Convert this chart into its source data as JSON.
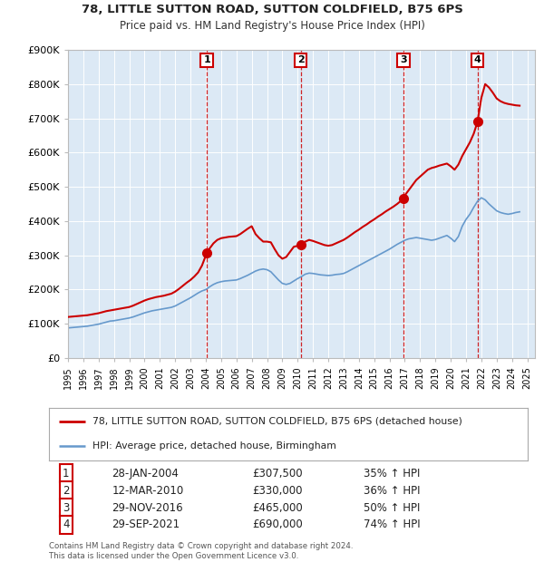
{
  "title1": "78, LITTLE SUTTON ROAD, SUTTON COLDFIELD, B75 6PS",
  "title2": "Price paid vs. HM Land Registry's House Price Index (HPI)",
  "legend_label1": "78, LITTLE SUTTON ROAD, SUTTON COLDFIELD, B75 6PS (detached house)",
  "legend_label2": "HPI: Average price, detached house, Birmingham",
  "footer1": "Contains HM Land Registry data © Crown copyright and database right 2024.",
  "footer2": "This data is licensed under the Open Government Licence v3.0.",
  "bg_color": "#dce9f5",
  "red_line_color": "#cc0000",
  "blue_line_color": "#6699cc",
  "vline_color": "#cc0000",
  "ylim": [
    0,
    900000
  ],
  "yticks": [
    0,
    100000,
    200000,
    300000,
    400000,
    500000,
    600000,
    700000,
    800000,
    900000
  ],
  "ytick_labels": [
    "£0",
    "£100K",
    "£200K",
    "£300K",
    "£400K",
    "£500K",
    "£600K",
    "£700K",
    "£800K",
    "£900K"
  ],
  "sales": [
    {
      "num": 1,
      "date": "28-JAN-2004",
      "price": 307500,
      "price_str": "£307,500",
      "pct": "35% ↑ HPI",
      "x": 2004.07
    },
    {
      "num": 2,
      "date": "12-MAR-2010",
      "price": 330000,
      "price_str": "£330,000",
      "pct": "36% ↑ HPI",
      "x": 2010.2
    },
    {
      "num": 3,
      "date": "29-NOV-2016",
      "price": 465000,
      "price_str": "£465,000",
      "pct": "50% ↑ HPI",
      "x": 2016.91
    },
    {
      "num": 4,
      "date": "29-SEP-2021",
      "price": 690000,
      "price_str": "£690,000",
      "pct": "74% ↑ HPI",
      "x": 2021.75
    }
  ],
  "hpi_x": [
    1995.0,
    1995.25,
    1995.5,
    1995.75,
    1996.0,
    1996.25,
    1996.5,
    1996.75,
    1997.0,
    1997.25,
    1997.5,
    1997.75,
    1998.0,
    1998.25,
    1998.5,
    1998.75,
    1999.0,
    1999.25,
    1999.5,
    1999.75,
    2000.0,
    2000.25,
    2000.5,
    2000.75,
    2001.0,
    2001.25,
    2001.5,
    2001.75,
    2002.0,
    2002.25,
    2002.5,
    2002.75,
    2003.0,
    2003.25,
    2003.5,
    2003.75,
    2004.0,
    2004.25,
    2004.5,
    2004.75,
    2005.0,
    2005.25,
    2005.5,
    2005.75,
    2006.0,
    2006.25,
    2006.5,
    2006.75,
    2007.0,
    2007.25,
    2007.5,
    2007.75,
    2008.0,
    2008.25,
    2008.5,
    2008.75,
    2009.0,
    2009.25,
    2009.5,
    2009.75,
    2010.0,
    2010.25,
    2010.5,
    2010.75,
    2011.0,
    2011.25,
    2011.5,
    2011.75,
    2012.0,
    2012.25,
    2012.5,
    2012.75,
    2013.0,
    2013.25,
    2013.5,
    2013.75,
    2014.0,
    2014.25,
    2014.5,
    2014.75,
    2015.0,
    2015.25,
    2015.5,
    2015.75,
    2016.0,
    2016.25,
    2016.5,
    2016.75,
    2017.0,
    2017.25,
    2017.5,
    2017.75,
    2018.0,
    2018.25,
    2018.5,
    2018.75,
    2019.0,
    2019.25,
    2019.5,
    2019.75,
    2020.0,
    2020.25,
    2020.5,
    2020.75,
    2021.0,
    2021.25,
    2021.5,
    2021.75,
    2022.0,
    2022.25,
    2022.5,
    2022.75,
    2023.0,
    2023.25,
    2023.5,
    2023.75,
    2024.0,
    2024.25,
    2024.5
  ],
  "hpi_y": [
    88000,
    89000,
    90000,
    91000,
    92000,
    93000,
    95000,
    97000,
    99000,
    102000,
    105000,
    108000,
    109000,
    111000,
    113000,
    115000,
    117000,
    120000,
    124000,
    128000,
    132000,
    135000,
    138000,
    140000,
    142000,
    144000,
    146000,
    148000,
    152000,
    158000,
    164000,
    170000,
    176000,
    183000,
    190000,
    196000,
    200000,
    208000,
    215000,
    220000,
    223000,
    225000,
    226000,
    227000,
    228000,
    232000,
    237000,
    242000,
    248000,
    254000,
    258000,
    260000,
    258000,
    252000,
    240000,
    228000,
    218000,
    215000,
    218000,
    225000,
    232000,
    238000,
    245000,
    248000,
    247000,
    245000,
    243000,
    242000,
    241000,
    242000,
    244000,
    245000,
    247000,
    252000,
    258000,
    264000,
    270000,
    276000,
    282000,
    288000,
    294000,
    300000,
    306000,
    312000,
    318000,
    325000,
    332000,
    338000,
    344000,
    348000,
    350000,
    352000,
    350000,
    348000,
    346000,
    344000,
    346000,
    350000,
    354000,
    358000,
    350000,
    340000,
    355000,
    385000,
    405000,
    420000,
    440000,
    458000,
    468000,
    462000,
    450000,
    440000,
    430000,
    425000,
    422000,
    420000,
    422000,
    425000,
    427000
  ],
  "red_x": [
    1995.0,
    1995.25,
    1995.5,
    1995.75,
    1996.0,
    1996.25,
    1996.5,
    1996.75,
    1997.0,
    1997.25,
    1997.5,
    1997.75,
    1998.0,
    1998.25,
    1998.5,
    1998.75,
    1999.0,
    1999.25,
    1999.5,
    1999.75,
    2000.0,
    2000.25,
    2000.5,
    2000.75,
    2001.0,
    2001.25,
    2001.5,
    2001.75,
    2002.0,
    2002.25,
    2002.5,
    2002.75,
    2003.0,
    2003.25,
    2003.5,
    2003.75,
    2004.07,
    2004.07,
    2004.25,
    2004.5,
    2004.75,
    2005.0,
    2005.25,
    2005.5,
    2005.75,
    2006.0,
    2006.25,
    2006.5,
    2006.75,
    2007.0,
    2007.25,
    2007.5,
    2007.75,
    2008.0,
    2008.25,
    2008.5,
    2008.75,
    2009.0,
    2009.25,
    2009.5,
    2009.75,
    2010.2,
    2010.2,
    2010.5,
    2010.75,
    2011.0,
    2011.25,
    2011.5,
    2011.75,
    2012.0,
    2012.25,
    2012.5,
    2012.75,
    2013.0,
    2013.25,
    2013.5,
    2013.75,
    2014.0,
    2014.25,
    2014.5,
    2014.75,
    2015.0,
    2015.25,
    2015.5,
    2015.75,
    2016.0,
    2016.25,
    2016.5,
    2016.91,
    2016.91,
    2017.0,
    2017.25,
    2017.5,
    2017.75,
    2018.0,
    2018.25,
    2018.5,
    2018.75,
    2019.0,
    2019.25,
    2019.5,
    2019.75,
    2020.0,
    2020.25,
    2020.5,
    2020.75,
    2021.0,
    2021.25,
    2021.5,
    2021.75,
    2021.75,
    2022.0,
    2022.25,
    2022.5,
    2022.75,
    2023.0,
    2023.25,
    2023.5,
    2023.75,
    2024.0,
    2024.25,
    2024.5
  ],
  "red_y": [
    120000,
    121000,
    122000,
    123000,
    124000,
    125000,
    127000,
    129000,
    131000,
    134000,
    137000,
    139000,
    141000,
    143000,
    145000,
    147000,
    149000,
    153000,
    158000,
    163000,
    168000,
    172000,
    175000,
    178000,
    180000,
    182000,
    185000,
    188000,
    194000,
    202000,
    211000,
    220000,
    228000,
    238000,
    250000,
    270000,
    307500,
    307500,
    320000,
    335000,
    345000,
    350000,
    352000,
    354000,
    355000,
    356000,
    362000,
    370000,
    378000,
    385000,
    362000,
    350000,
    340000,
    340000,
    338000,
    318000,
    300000,
    290000,
    295000,
    310000,
    325000,
    330000,
    330000,
    340000,
    345000,
    342000,
    338000,
    334000,
    330000,
    328000,
    330000,
    335000,
    340000,
    345000,
    352000,
    360000,
    368000,
    375000,
    383000,
    390000,
    398000,
    405000,
    413000,
    420000,
    428000,
    435000,
    442000,
    450000,
    465000,
    465000,
    475000,
    490000,
    505000,
    520000,
    530000,
    540000,
    550000,
    555000,
    558000,
    562000,
    565000,
    568000,
    560000,
    550000,
    565000,
    590000,
    610000,
    630000,
    655000,
    690000,
    690000,
    760000,
    800000,
    790000,
    775000,
    758000,
    750000,
    745000,
    742000,
    740000,
    738000,
    737000
  ]
}
